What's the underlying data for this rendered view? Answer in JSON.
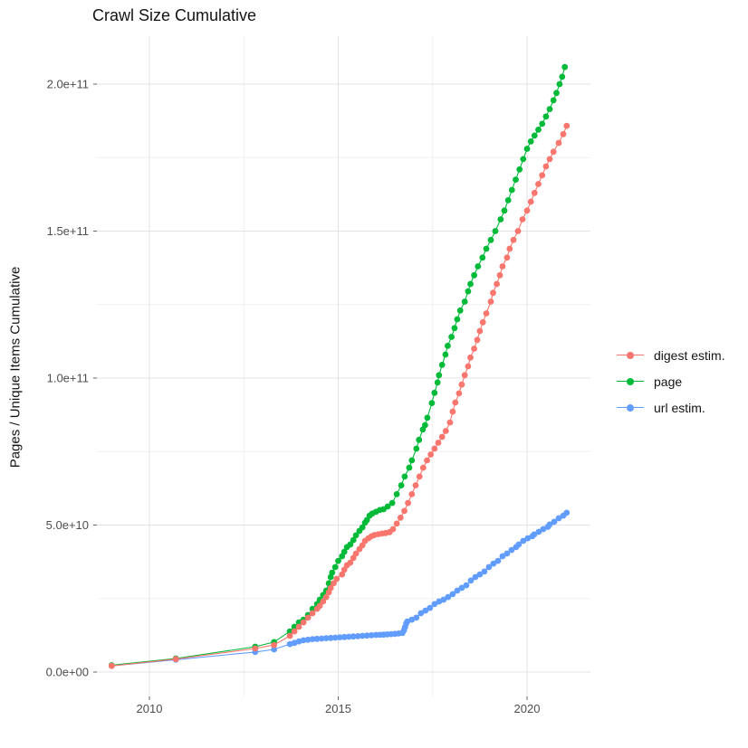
{
  "title": "Crawl Size Cumulative",
  "axes": {
    "x": {
      "ticks": [
        {
          "label": "2010",
          "year": 2010
        },
        {
          "label": "2015",
          "year": 2015
        },
        {
          "label": "2020",
          "year": 2020
        }
      ],
      "minor_years": [
        2012.5,
        2017.5
      ],
      "range_years": [
        2008.6,
        2021.7
      ]
    },
    "y": {
      "label": "Pages / Unique Items Cumulative",
      "ticks": [
        {
          "label": "0.0e+00",
          "value_billions": 0
        },
        {
          "label": "5.0e+10",
          "value_billions": 50
        },
        {
          "label": "1.0e+11",
          "value_billions": 100
        },
        {
          "label": "1.5e+11",
          "value_billions": 150
        },
        {
          "label": "2.0e+11",
          "value_billions": 200
        }
      ],
      "minor_billions": [
        25,
        75,
        125,
        175
      ],
      "range_billions": [
        -8,
        216
      ]
    }
  },
  "legend": {
    "items": [
      {
        "label": "digest estim.",
        "color": "#F8766D"
      },
      {
        "label": "page",
        "color": "#00BA38"
      },
      {
        "label": "url estim.",
        "color": "#619CFF"
      }
    ]
  },
  "colors": {
    "grid_major": "#E3E3E3",
    "grid_minor": "#F1F1F1",
    "tick_mark": "#666666",
    "tick_label": "#4D4D4D",
    "background": "#FFFFFF"
  },
  "chart_data": {
    "type": "line",
    "title": "Crawl Size Cumulative",
    "xlabel": "",
    "ylabel": "Pages / Unique Items Cumulative",
    "x_unit": "decimal year",
    "value_unit": "billions (1e9) of pages / unique items",
    "grid": true,
    "legend_position": "right",
    "series": [
      {
        "name": "digest estim.",
        "color": "#F8766D",
        "points": [
          [
            2009.0,
            2.1
          ],
          [
            2010.7,
            4.4
          ],
          [
            2012.8,
            8.0
          ],
          [
            2013.3,
            9.2
          ],
          [
            2013.72,
            12.3
          ],
          [
            2013.84,
            13.8
          ],
          [
            2013.96,
            15.4
          ],
          [
            2014.08,
            16.9
          ],
          [
            2014.2,
            18.5
          ],
          [
            2014.32,
            20.0
          ],
          [
            2014.44,
            21.5
          ],
          [
            2014.51,
            22.5
          ],
          [
            2014.6,
            24.0
          ],
          [
            2014.68,
            25.5
          ],
          [
            2014.75,
            27.1
          ],
          [
            2014.8,
            28.6
          ],
          [
            2014.88,
            30.2
          ],
          [
            2014.96,
            31.7
          ],
          [
            2015.1,
            33.2
          ],
          [
            2015.16,
            34.8
          ],
          [
            2015.23,
            36.3
          ],
          [
            2015.32,
            37.2
          ],
          [
            2015.4,
            38.8
          ],
          [
            2015.47,
            40.3
          ],
          [
            2015.56,
            41.8
          ],
          [
            2015.64,
            43.1
          ],
          [
            2015.71,
            44.6
          ],
          [
            2015.8,
            45.5
          ],
          [
            2015.88,
            46.2
          ],
          [
            2015.96,
            46.6
          ],
          [
            2016.06,
            46.9
          ],
          [
            2016.16,
            47.1
          ],
          [
            2016.26,
            47.3
          ],
          [
            2016.36,
            47.6
          ],
          [
            2016.45,
            48.6
          ],
          [
            2016.55,
            50.5
          ],
          [
            2016.65,
            52.5
          ],
          [
            2016.75,
            54.8
          ],
          [
            2016.85,
            57.5
          ],
          [
            2016.95,
            60.5
          ],
          [
            2017.05,
            63.5
          ],
          [
            2017.15,
            66.5
          ],
          [
            2017.25,
            69.5
          ],
          [
            2017.35,
            72.0
          ],
          [
            2017.45,
            74.0
          ],
          [
            2017.55,
            76.0
          ],
          [
            2017.65,
            78.0
          ],
          [
            2017.75,
            80.0
          ],
          [
            2017.85,
            82.0
          ],
          [
            2017.96,
            84.9
          ],
          [
            2018.03,
            88.6
          ],
          [
            2018.1,
            91.7
          ],
          [
            2018.2,
            94.8
          ],
          [
            2018.27,
            97.8
          ],
          [
            2018.35,
            101
          ],
          [
            2018.44,
            104
          ],
          [
            2018.5,
            107
          ],
          [
            2018.6,
            110
          ],
          [
            2018.68,
            113
          ],
          [
            2018.75,
            116
          ],
          [
            2018.83,
            119
          ],
          [
            2018.92,
            122
          ],
          [
            2019.04,
            126
          ],
          [
            2019.1,
            129
          ],
          [
            2019.2,
            132
          ],
          [
            2019.28,
            135
          ],
          [
            2019.35,
            138
          ],
          [
            2019.47,
            141
          ],
          [
            2019.54,
            144
          ],
          [
            2019.64,
            147
          ],
          [
            2019.76,
            150
          ],
          [
            2019.88,
            154
          ],
          [
            2020.0,
            157
          ],
          [
            2020.1,
            160
          ],
          [
            2020.2,
            163
          ],
          [
            2020.3,
            166
          ],
          [
            2020.4,
            169
          ],
          [
            2020.5,
            172
          ],
          [
            2020.6,
            174.5
          ],
          [
            2020.7,
            177
          ],
          [
            2020.84,
            180
          ],
          [
            2020.96,
            183
          ],
          [
            2021.05,
            185.8
          ]
        ]
      },
      {
        "name": "page",
        "color": "#00BA38",
        "points": [
          [
            2009.0,
            2.3
          ],
          [
            2010.7,
            4.6
          ],
          [
            2012.8,
            8.6
          ],
          [
            2013.3,
            10.2
          ],
          [
            2013.72,
            13.8
          ],
          [
            2013.84,
            15.4
          ],
          [
            2013.96,
            16.9
          ],
          [
            2014.08,
            17.8
          ],
          [
            2014.2,
            19.4
          ],
          [
            2014.32,
            21.5
          ],
          [
            2014.44,
            23.1
          ],
          [
            2014.51,
            24.6
          ],
          [
            2014.6,
            26.2
          ],
          [
            2014.68,
            27.7
          ],
          [
            2014.75,
            30.2
          ],
          [
            2014.8,
            32.3
          ],
          [
            2014.84,
            33.8
          ],
          [
            2014.92,
            35.7
          ],
          [
            2015.0,
            37.8
          ],
          [
            2015.1,
            39.4
          ],
          [
            2015.16,
            40.9
          ],
          [
            2015.23,
            42.5
          ],
          [
            2015.32,
            43.4
          ],
          [
            2015.4,
            44.9
          ],
          [
            2015.47,
            46.5
          ],
          [
            2015.56,
            48.0
          ],
          [
            2015.64,
            49.2
          ],
          [
            2015.71,
            50.8
          ],
          [
            2015.76,
            51.7
          ],
          [
            2015.83,
            53.2
          ],
          [
            2015.9,
            53.9
          ],
          [
            2016.0,
            54.5
          ],
          [
            2016.1,
            55.1
          ],
          [
            2016.2,
            55.4
          ],
          [
            2016.31,
            56.3
          ],
          [
            2016.43,
            57.5
          ],
          [
            2016.55,
            60.5
          ],
          [
            2016.67,
            63.5
          ],
          [
            2016.76,
            66.5
          ],
          [
            2016.88,
            69.5
          ],
          [
            2016.95,
            72.0
          ],
          [
            2017.07,
            76.0
          ],
          [
            2017.14,
            79.0
          ],
          [
            2017.24,
            82.5
          ],
          [
            2017.3,
            84.0
          ],
          [
            2017.36,
            86.5
          ],
          [
            2017.48,
            91.5
          ],
          [
            2017.55,
            95.0
          ],
          [
            2017.63,
            98.5
          ],
          [
            2017.67,
            101
          ],
          [
            2017.75,
            104.5
          ],
          [
            2017.84,
            108
          ],
          [
            2017.9,
            111
          ],
          [
            2018.0,
            114
          ],
          [
            2018.08,
            117
          ],
          [
            2018.15,
            120
          ],
          [
            2018.23,
            123
          ],
          [
            2018.35,
            126
          ],
          [
            2018.44,
            129.5
          ],
          [
            2018.5,
            132
          ],
          [
            2018.6,
            135
          ],
          [
            2018.7,
            138
          ],
          [
            2018.82,
            141
          ],
          [
            2018.92,
            144
          ],
          [
            2019.04,
            147
          ],
          [
            2019.16,
            150
          ],
          [
            2019.3,
            154
          ],
          [
            2019.4,
            157
          ],
          [
            2019.5,
            160.5
          ],
          [
            2019.6,
            164
          ],
          [
            2019.7,
            167.5
          ],
          [
            2019.8,
            171
          ],
          [
            2019.9,
            174.5
          ],
          [
            2020.0,
            178
          ],
          [
            2020.1,
            180.5
          ],
          [
            2020.2,
            182.5
          ],
          [
            2020.3,
            184.5
          ],
          [
            2020.4,
            186.5
          ],
          [
            2020.5,
            189
          ],
          [
            2020.6,
            191.5
          ],
          [
            2020.7,
            194.5
          ],
          [
            2020.78,
            197
          ],
          [
            2020.86,
            200
          ],
          [
            2020.93,
            202.5
          ],
          [
            2021.0,
            205.8
          ]
        ]
      },
      {
        "name": "url estim.",
        "color": "#619CFF",
        "points": [
          [
            2009.0,
            2.1
          ],
          [
            2010.7,
            4.2
          ],
          [
            2012.8,
            6.8
          ],
          [
            2013.3,
            7.7
          ],
          [
            2013.72,
            9.5
          ],
          [
            2013.84,
            9.9
          ],
          [
            2013.96,
            10.4
          ],
          [
            2014.08,
            10.8
          ],
          [
            2014.2,
            11.0
          ],
          [
            2014.32,
            11.2
          ],
          [
            2014.44,
            11.3
          ],
          [
            2014.56,
            11.4
          ],
          [
            2014.68,
            11.5
          ],
          [
            2014.8,
            11.6
          ],
          [
            2014.92,
            11.7
          ],
          [
            2015.04,
            11.8
          ],
          [
            2015.16,
            11.9
          ],
          [
            2015.28,
            12.0
          ],
          [
            2015.4,
            12.1
          ],
          [
            2015.52,
            12.2
          ],
          [
            2015.64,
            12.3
          ],
          [
            2015.76,
            12.4
          ],
          [
            2015.88,
            12.5
          ],
          [
            2016.0,
            12.6
          ],
          [
            2016.1,
            12.65
          ],
          [
            2016.2,
            12.7
          ],
          [
            2016.3,
            12.8
          ],
          [
            2016.4,
            12.9
          ],
          [
            2016.5,
            13.0
          ],
          [
            2016.6,
            13.1
          ],
          [
            2016.7,
            13.3
          ],
          [
            2016.74,
            14.2
          ],
          [
            2016.77,
            15.3
          ],
          [
            2016.8,
            16.5
          ],
          [
            2016.83,
            17.2
          ],
          [
            2016.95,
            17.8
          ],
          [
            2017.07,
            18.5
          ],
          [
            2017.19,
            20.0
          ],
          [
            2017.31,
            20.9
          ],
          [
            2017.43,
            21.8
          ],
          [
            2017.55,
            23.1
          ],
          [
            2017.67,
            24.0
          ],
          [
            2017.79,
            24.6
          ],
          [
            2017.91,
            25.5
          ],
          [
            2018.03,
            26.5
          ],
          [
            2018.15,
            27.7
          ],
          [
            2018.27,
            28.6
          ],
          [
            2018.39,
            29.5
          ],
          [
            2018.51,
            31.1
          ],
          [
            2018.63,
            32.3
          ],
          [
            2018.75,
            33.2
          ],
          [
            2018.87,
            34.2
          ],
          [
            2018.99,
            35.7
          ],
          [
            2019.11,
            36.9
          ],
          [
            2019.23,
            37.8
          ],
          [
            2019.35,
            39.4
          ],
          [
            2019.47,
            40.3
          ],
          [
            2019.59,
            41.5
          ],
          [
            2019.71,
            42.5
          ],
          [
            2019.78,
            43.4
          ],
          [
            2019.9,
            44.6
          ],
          [
            2020.02,
            45.5
          ],
          [
            2020.14,
            46.2
          ],
          [
            2020.19,
            46.8
          ],
          [
            2020.31,
            47.7
          ],
          [
            2020.43,
            48.6
          ],
          [
            2020.55,
            49.4
          ],
          [
            2020.6,
            50.2
          ],
          [
            2020.72,
            51.1
          ],
          [
            2020.84,
            52.3
          ],
          [
            2020.96,
            53.2
          ],
          [
            2021.05,
            54.2
          ]
        ]
      }
    ]
  }
}
